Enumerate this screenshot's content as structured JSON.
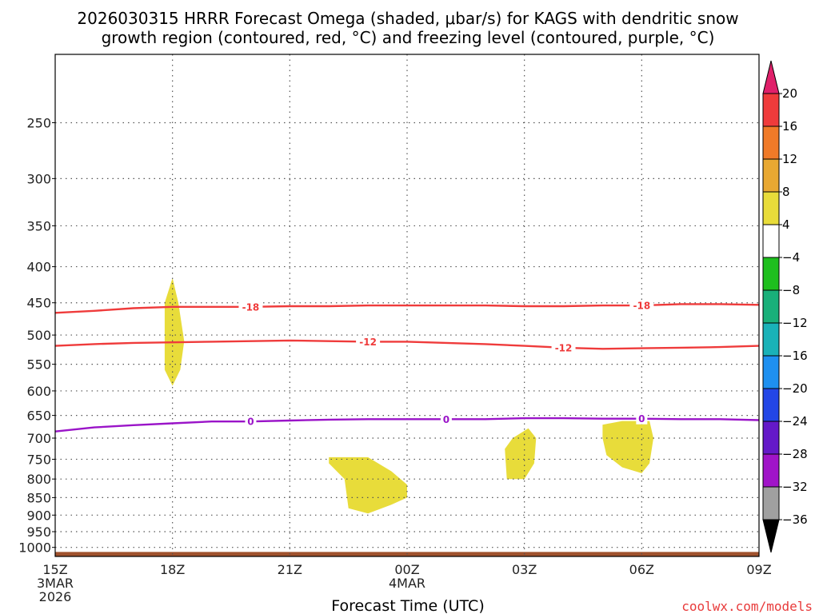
{
  "title_line1": "2026030315 HRRR Forecast Omega (shaded, μbar/s) for KAGS with dendritic snow",
  "title_line2": "growth region (contoured, red, °C) and freezing level (contoured, purple, °C)",
  "credit": "coolwx.com/models",
  "chart_data": {
    "type": "time-height cross section",
    "title": "2026030315 HRRR Forecast Omega (shaded, μbar/s) for KAGS with dendritic snow growth region (contoured, red, °C) and freezing level (contoured, purple, °C)",
    "xlabel": "Forecast Time (UTC)",
    "ylabel": "",
    "x_range_hours": [
      0,
      18
    ],
    "y_axis": {
      "type": "log-pressure",
      "range_hPa": [
        1030,
        200
      ],
      "grid": true
    },
    "x_ticks": [
      {
        "hour": 0,
        "lines": [
          "15Z",
          "3MAR",
          "2026"
        ]
      },
      {
        "hour": 3,
        "lines": [
          "18Z"
        ]
      },
      {
        "hour": 6,
        "lines": [
          "21Z"
        ]
      },
      {
        "hour": 9,
        "lines": [
          "00Z",
          "4MAR"
        ]
      },
      {
        "hour": 12,
        "lines": [
          "03Z"
        ]
      },
      {
        "hour": 15,
        "lines": [
          "06Z"
        ]
      },
      {
        "hour": 18,
        "lines": [
          "09Z"
        ]
      }
    ],
    "y_ticks": [
      250,
      300,
      350,
      400,
      450,
      500,
      550,
      600,
      650,
      700,
      750,
      800,
      850,
      900,
      950,
      1000
    ],
    "colorbar": {
      "unit": "μbar/s",
      "tick_labels": [
        "20",
        "16",
        "12",
        "8",
        "4",
        "−4",
        "−8",
        "−12",
        "−16",
        "−20",
        "−24",
        "−28",
        "−32",
        "−36"
      ],
      "bands": [
        {
          "from": 20,
          "to": 24,
          "color": "#e0206a"
        },
        {
          "from": 16,
          "to": 20,
          "color": "#ef3b3b"
        },
        {
          "from": 12,
          "to": 16,
          "color": "#f07a28"
        },
        {
          "from": 8,
          "to": 12,
          "color": "#e8a832"
        },
        {
          "from": 4,
          "to": 8,
          "color": "#e8dc3a"
        },
        {
          "from": -4,
          "to": 4,
          "color": "#ffffff"
        },
        {
          "from": -8,
          "to": -4,
          "color": "#1ebf1e"
        },
        {
          "from": -12,
          "to": -8,
          "color": "#19b07a"
        },
        {
          "from": -16,
          "to": -12,
          "color": "#1ab2b8"
        },
        {
          "from": -20,
          "to": -16,
          "color": "#1e90f0"
        },
        {
          "from": -24,
          "to": -20,
          "color": "#2346e6"
        },
        {
          "from": -28,
          "to": -24,
          "color": "#6419c8"
        },
        {
          "from": -32,
          "to": -28,
          "color": "#a014c8"
        },
        {
          "from": -36,
          "to": -32,
          "color": "#a0a0a0"
        },
        {
          "from": -40,
          "to": -36,
          "color": "#000000"
        }
      ]
    },
    "shaded_regions": [
      {
        "omega_range": [
          4,
          8
        ],
        "color": "#e8dc3a",
        "points": [
          [
            3.0,
            415
          ],
          [
            3.15,
            450
          ],
          [
            3.3,
            510
          ],
          [
            3.2,
            560
          ],
          [
            3.0,
            590
          ],
          [
            2.8,
            560
          ],
          [
            2.8,
            450
          ]
        ]
      },
      {
        "omega_range": [
          4,
          8
        ],
        "color": "#e8dc3a",
        "points": [
          [
            7.0,
            745
          ],
          [
            8.0,
            745
          ],
          [
            8.6,
            780
          ],
          [
            9.0,
            815
          ],
          [
            9.0,
            850
          ],
          [
            8.6,
            870
          ],
          [
            8.0,
            895
          ],
          [
            7.5,
            880
          ],
          [
            7.4,
            800
          ],
          [
            7.0,
            760
          ]
        ]
      },
      {
        "omega_range": [
          4,
          8
        ],
        "color": "#e8dc3a",
        "points": [
          [
            12.1,
            678
          ],
          [
            12.3,
            700
          ],
          [
            12.25,
            760
          ],
          [
            12.0,
            800
          ],
          [
            11.55,
            800
          ],
          [
            11.5,
            725
          ],
          [
            11.7,
            700
          ]
        ]
      },
      {
        "omega_range": [
          4,
          8
        ],
        "color": "#e8dc3a",
        "points": [
          [
            14.0,
            670
          ],
          [
            14.5,
            662
          ],
          [
            15.2,
            662
          ],
          [
            15.3,
            700
          ],
          [
            15.2,
            760
          ],
          [
            15.0,
            785
          ],
          [
            14.5,
            770
          ],
          [
            14.1,
            740
          ],
          [
            14.0,
            700
          ]
        ]
      }
    ],
    "contours": [
      {
        "label": "-18",
        "color": "#ef3b3b",
        "points": [
          [
            0,
            465
          ],
          [
            1,
            462
          ],
          [
            2,
            458
          ],
          [
            3,
            456
          ],
          [
            4,
            456
          ],
          [
            5,
            456
          ],
          [
            6,
            455
          ],
          [
            7,
            455
          ],
          [
            8,
            454
          ],
          [
            9,
            454
          ],
          [
            10,
            454
          ],
          [
            11,
            454
          ],
          [
            12,
            455
          ],
          [
            13,
            455
          ],
          [
            14,
            454
          ],
          [
            15,
            454
          ],
          [
            16,
            452
          ],
          [
            17,
            452
          ],
          [
            18,
            453
          ]
        ],
        "labels_at_hours": [
          5,
          15
        ]
      },
      {
        "label": "-12",
        "color": "#ef3b3b",
        "points": [
          [
            0,
            518
          ],
          [
            1,
            515
          ],
          [
            2,
            513
          ],
          [
            3,
            512
          ],
          [
            4,
            511
          ],
          [
            5,
            510
          ],
          [
            6,
            509
          ],
          [
            7,
            510
          ],
          [
            8,
            511
          ],
          [
            9,
            511
          ],
          [
            10,
            513
          ],
          [
            11,
            515
          ],
          [
            12,
            518
          ],
          [
            13,
            521
          ],
          [
            14,
            523
          ],
          [
            15,
            522
          ],
          [
            16,
            521
          ],
          [
            17,
            520
          ],
          [
            18,
            518
          ]
        ],
        "labels_at_hours": [
          8,
          13
        ]
      },
      {
        "label": "0",
        "color": "#9a14c8",
        "points": [
          [
            0,
            685
          ],
          [
            1,
            676
          ],
          [
            2,
            671
          ],
          [
            3,
            667
          ],
          [
            4,
            663
          ],
          [
            5,
            663
          ],
          [
            6,
            661
          ],
          [
            7,
            659
          ],
          [
            8,
            658
          ],
          [
            9,
            658
          ],
          [
            10,
            658
          ],
          [
            11,
            658
          ],
          [
            12,
            656
          ],
          [
            13,
            656
          ],
          [
            14,
            657
          ],
          [
            15,
            657
          ],
          [
            16,
            658
          ],
          [
            17,
            658
          ],
          [
            18,
            660
          ]
        ],
        "labels_at_hours": [
          5,
          10,
          15
        ]
      }
    ],
    "surface_terrain": {
      "color": "#a0522d",
      "pressure_hPa": 1015
    }
  }
}
